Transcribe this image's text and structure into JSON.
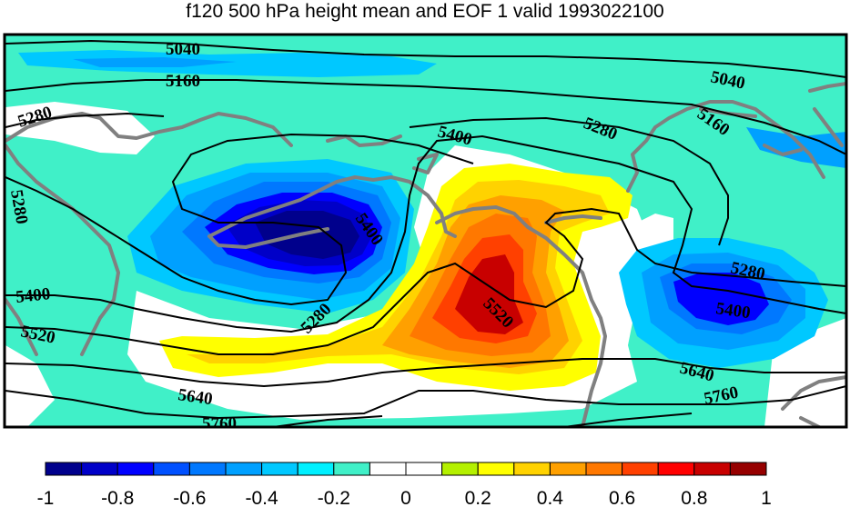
{
  "title": "f120 500 hPa height mean and EOF 1 valid 1993022100",
  "contour_labels": [
    "5040",
    "5160",
    "5280",
    "5400",
    "5520",
    "5640",
    "5760"
  ],
  "colorbar": {
    "ticks": [
      "-1",
      "-0.8",
      "-0.6",
      "-0.4",
      "-0.2",
      "0",
      "0.2",
      "0.4",
      "0.6",
      "0.8",
      "1"
    ],
    "colors": [
      "#00008c",
      "#0000c8",
      "#0000ff",
      "#0050ff",
      "#0078ff",
      "#00a0ff",
      "#00c8ff",
      "#00f0ff",
      "#40f0c8",
      "#ffffff",
      "#ffffff",
      "#b4f000",
      "#ffff00",
      "#ffd200",
      "#ffa000",
      "#ff7800",
      "#ff4000",
      "#ff0000",
      "#c80000",
      "#960000"
    ]
  },
  "colors": {
    "background_field": "#40f0c8",
    "coastline": "#808080",
    "contour": "#000000",
    "frame": "#000000"
  }
}
